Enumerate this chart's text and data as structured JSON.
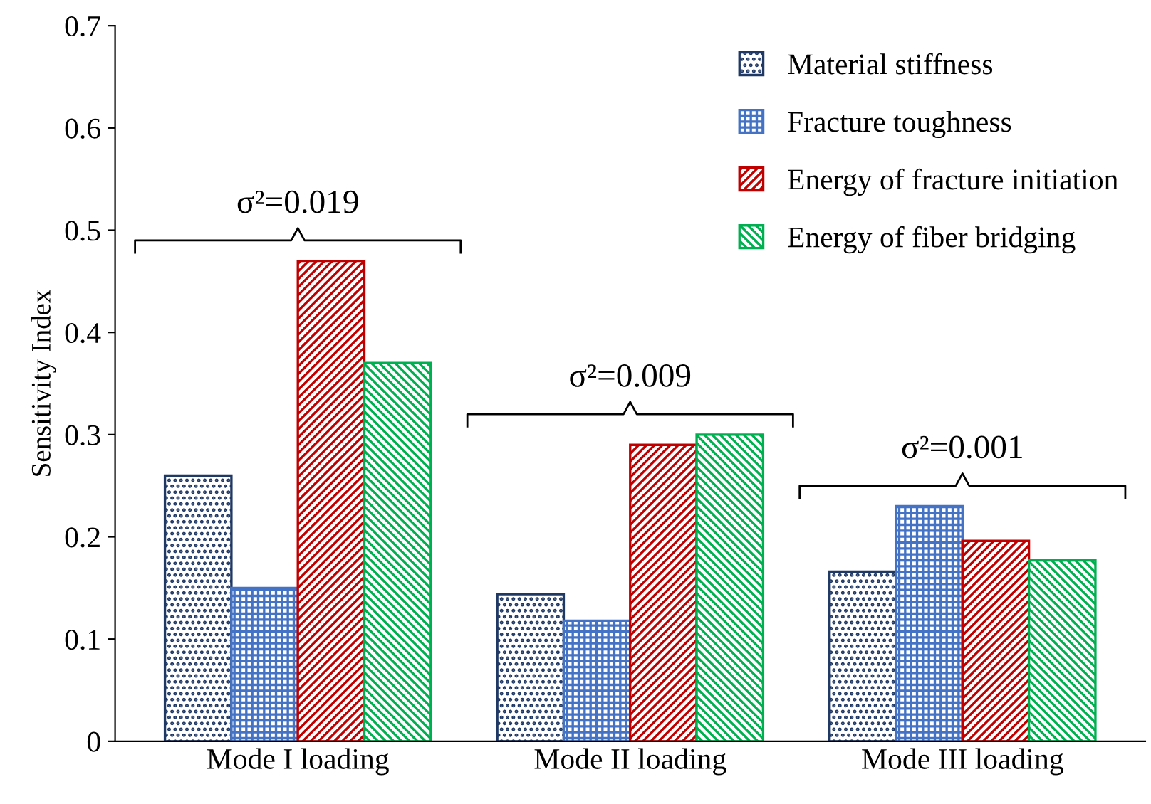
{
  "chart_data": {
    "type": "bar",
    "ylabel": "Sensitivity Index",
    "categories": [
      "Mode I loading",
      "Mode II loading",
      "Mode III loading"
    ],
    "series": [
      {
        "name": "Material stiffness",
        "color": "#1f3864",
        "values": [
          0.26,
          0.144,
          0.166
        ]
      },
      {
        "name": "Fracture toughness",
        "color": "#4472c4",
        "values": [
          0.15,
          0.118,
          0.23
        ]
      },
      {
        "name": "Energy of fracture initiation",
        "color": "#c00000",
        "values": [
          0.47,
          0.29,
          0.196
        ]
      },
      {
        "name": "Energy of fiber bridging",
        "color": "#00b050",
        "values": [
          0.37,
          0.3,
          0.177
        ]
      }
    ],
    "ylim": [
      0,
      0.7
    ],
    "yticks": [
      0,
      0.1,
      0.2,
      0.3,
      0.4,
      0.5,
      0.6,
      0.7
    ],
    "annotations": [
      "σ²=0.019",
      "σ²=0.009",
      "σ²=0.001"
    ],
    "legend": "top right",
    "grid": false
  }
}
